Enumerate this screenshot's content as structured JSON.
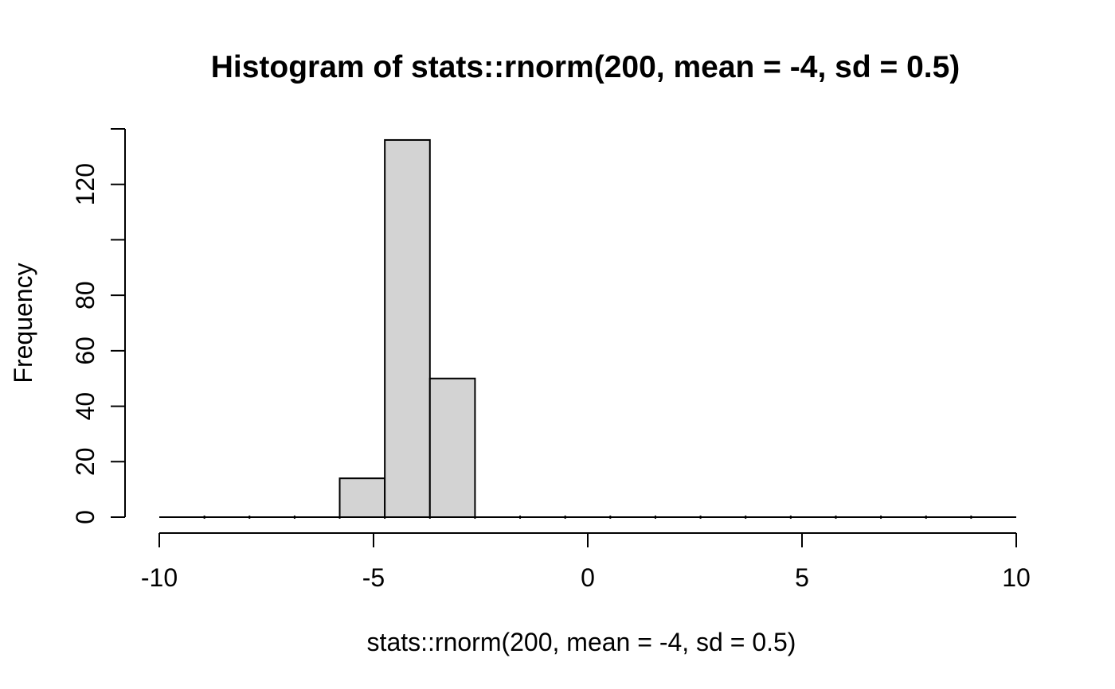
{
  "chart_data": {
    "type": "bar",
    "subtype": "histogram",
    "title": "Histogram of stats::rnorm(200, mean = -4, sd = 0.5)",
    "xlabel": "stats::rnorm(200, mean = -4, sd = 0.5)",
    "ylabel": "Frequency",
    "xlim": [
      -10,
      10
    ],
    "ylim": [
      0,
      140
    ],
    "grid": false,
    "legend": false,
    "x_ticks": [
      {
        "value": -10,
        "label": "-10"
      },
      {
        "value": -5,
        "label": "-5"
      },
      {
        "value": 0,
        "label": "0"
      },
      {
        "value": 5,
        "label": "5"
      },
      {
        "value": 10,
        "label": "10"
      }
    ],
    "y_ticks": [
      {
        "value": 0,
        "label": "0"
      },
      {
        "value": 20,
        "label": "20"
      },
      {
        "value": 40,
        "label": "40"
      },
      {
        "value": 60,
        "label": "60"
      },
      {
        "value": 80,
        "label": "80"
      },
      {
        "value": 100,
        "label": ""
      },
      {
        "value": 120,
        "label": "120"
      },
      {
        "value": 140,
        "label": ""
      }
    ],
    "breaks": {
      "start": -10,
      "end": 10,
      "n_bins": 19,
      "bin_width": 1.0526
    },
    "bins": [
      {
        "x0": -5.7895,
        "x1": -4.7368,
        "count": 14
      },
      {
        "x0": -4.7368,
        "x1": -3.6842,
        "count": 136
      },
      {
        "x0": -3.6842,
        "x1": -2.6316,
        "count": 50
      }
    ],
    "zero_baseline_span": [
      -10,
      10
    ],
    "colors": {
      "bar_fill": "#d3d3d3",
      "bar_stroke": "#000000",
      "axis": "#000000",
      "text": "#000000",
      "background": "#ffffff"
    }
  }
}
